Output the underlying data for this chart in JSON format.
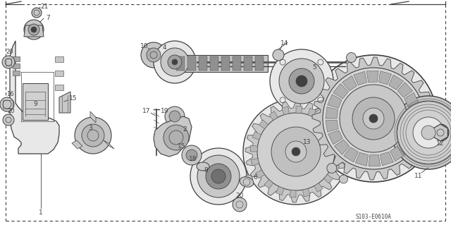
{
  "bg_color": "#ffffff",
  "line_color": "#404040",
  "gray_fill": "#c8c8c8",
  "dark_fill": "#888888",
  "light_fill": "#e8e8e8",
  "fig_width": 6.4,
  "fig_height": 3.19,
  "dpi": 100,
  "diagram_code": "S103-E0610A",
  "label_fontsize": 6.5,
  "code_fontsize": 5.5
}
